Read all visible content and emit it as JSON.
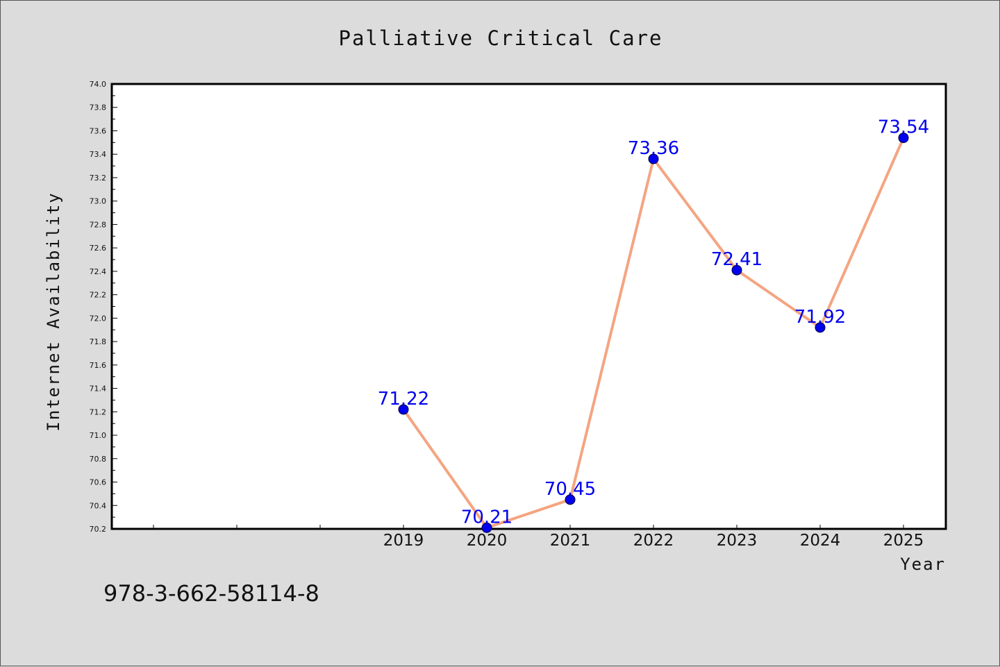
{
  "chart_data": {
    "type": "line",
    "title": "Palliative Critical Care",
    "xlabel": "Year",
    "ylabel": "Internet Availability",
    "categories": [
      "2019",
      "2020",
      "2021",
      "2022",
      "2023",
      "2024",
      "2025"
    ],
    "series": [
      {
        "values": [
          71.22,
          70.21,
          70.45,
          73.36,
          72.41,
          71.92,
          73.54
        ],
        "labels": [
          "71.22",
          "70.21",
          "70.45",
          "73.36",
          "72.41",
          "71.92",
          "73.54"
        ],
        "line_color": "#f4a582",
        "marker_color": "#0000ee",
        "label_color": "#0000ee"
      }
    ],
    "ylim": [
      70.2,
      74.0
    ],
    "yticks": [
      "70.2",
      "70.4",
      "70.6",
      "70.8",
      "71.0",
      "71.2",
      "71.4",
      "71.6",
      "71.8",
      "72.0",
      "72.2",
      "72.4",
      "72.6",
      "72.8",
      "73.0",
      "73.2",
      "73.4",
      "73.6",
      "73.8",
      "74.0"
    ],
    "grid": false,
    "legend": "none"
  },
  "footnote": "978-3-662-58114-8",
  "colors": {
    "background": "#dcdcdc",
    "plot_background": "#ffffff"
  }
}
